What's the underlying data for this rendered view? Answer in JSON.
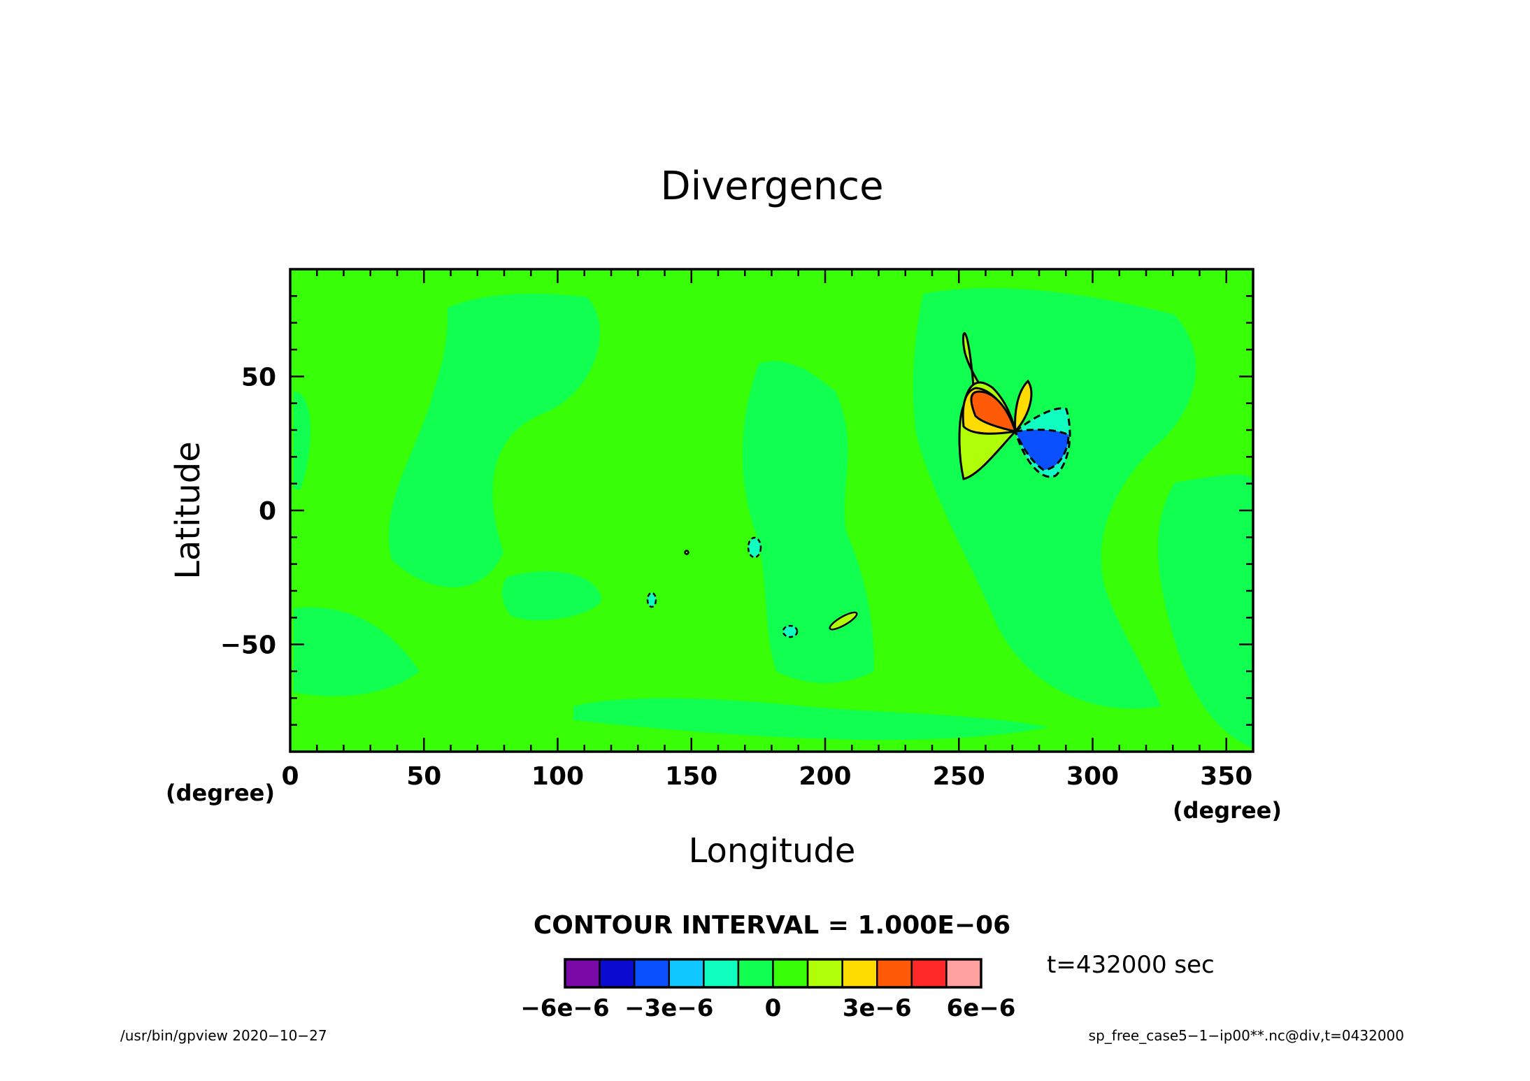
{
  "chart_data": {
    "type": "heatmap",
    "title": "Divergence",
    "xlabel": "Longitude",
    "ylabel": "Latitude",
    "x_unit": "(degree)",
    "y_unit": "(degree)",
    "xlim": [
      0,
      360
    ],
    "ylim": [
      -90,
      90
    ],
    "x_ticks": [
      0,
      50,
      100,
      150,
      200,
      250,
      300,
      350
    ],
    "y_ticks": [
      -50,
      0,
      50
    ],
    "x_tick_labels": [
      "0",
      "50",
      "100",
      "150",
      "200",
      "250",
      "300",
      "350"
    ],
    "y_tick_labels": [
      "−50",
      "0",
      "50"
    ],
    "contour_interval_label": "CONTOUR INTERVAL = 1.000E−06",
    "colorbar": {
      "levels": [
        -6e-06,
        -5e-06,
        -4e-06,
        -3e-06,
        -2e-06,
        -1e-06,
        0,
        1e-06,
        2e-06,
        3e-06,
        4e-06,
        5e-06,
        6e-06
      ],
      "colors": [
        "#7a0aa8",
        "#0a0ad0",
        "#0a50ff",
        "#10c8ff",
        "#10ffc0",
        "#10ff50",
        "#38ff08",
        "#b0ff08",
        "#ffdc00",
        "#ff5a08",
        "#ff2828",
        "#ffa0a0"
      ],
      "tick_labels": [
        "−6e−6",
        "−3e−6",
        "0",
        "3e−6",
        "6e−6"
      ],
      "tick_values": [
        -6e-06,
        -3e-06,
        0,
        3e-06,
        6e-06
      ]
    },
    "field_features": [
      {
        "kind": "dipole-positive",
        "lon": 262,
        "lat": 33,
        "peak": 4e-06
      },
      {
        "kind": "dipole-negative",
        "lon": 281,
        "lat": 27,
        "peak": -4e-06
      },
      {
        "kind": "small-negative",
        "lon": 171,
        "lat": -11,
        "peak": -1e-06
      },
      {
        "kind": "small-negative",
        "lon": 134,
        "lat": -32,
        "peak": -1e-06
      },
      {
        "kind": "small-negative",
        "lon": 186,
        "lat": -44,
        "peak": -1e-06
      },
      {
        "kind": "small-positive",
        "lon": 206,
        "lat": -40,
        "peak": 1e-06
      }
    ],
    "time_label": "t=432000 sec"
  },
  "footer": {
    "left": "/usr/bin/gpview  2020−10−27",
    "right": "sp_free_case5−1−ip00**.nc@div,t=0432000"
  }
}
